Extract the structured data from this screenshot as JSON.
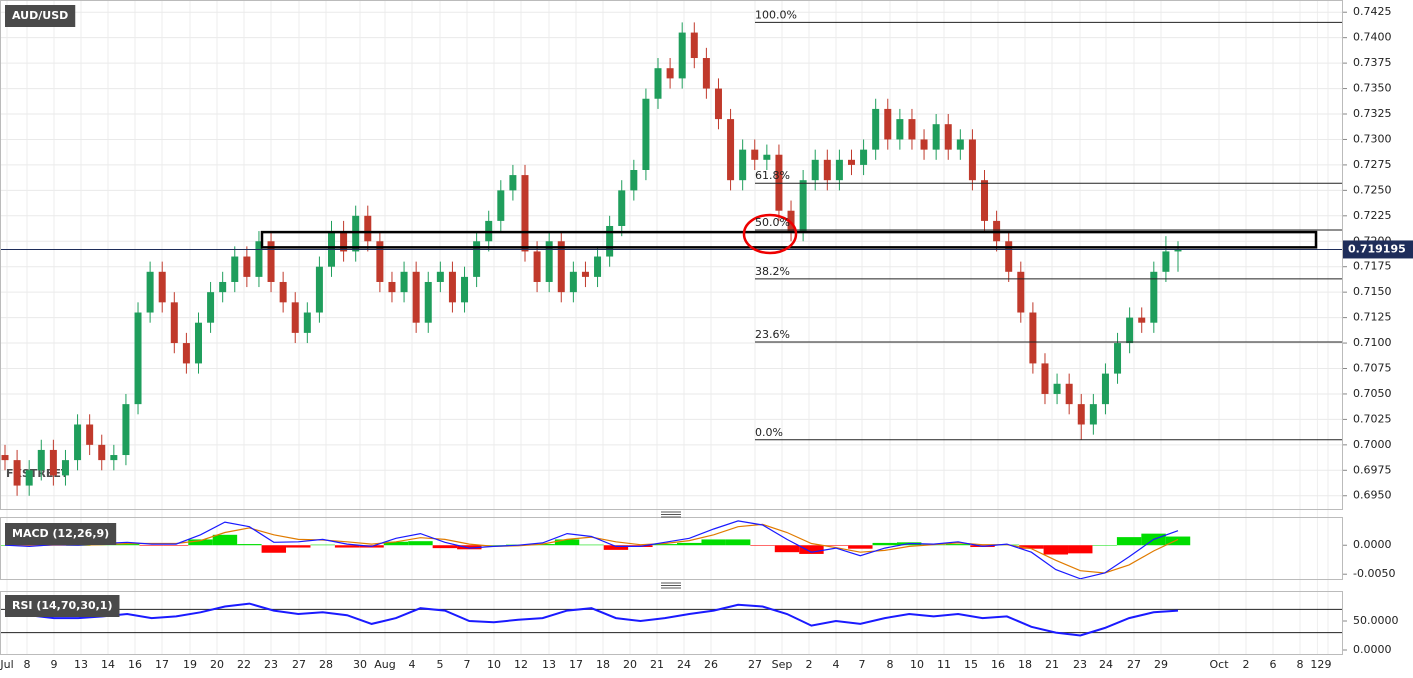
{
  "chart_data": [
    {
      "type": "candlestick",
      "title": "AUD/USD",
      "watermark": "FXSTREET",
      "up_color": "#1f9e5c",
      "down_color": "#c0392b",
      "grid": true,
      "ylim": [
        0.6936,
        0.7437
      ],
      "yticks": [
        {
          "value": 0.695,
          "label": "0.6950"
        },
        {
          "value": 0.6975,
          "label": "0.6975"
        },
        {
          "value": 0.7,
          "label": "0.7000"
        },
        {
          "value": 0.7025,
          "label": "0.7025"
        },
        {
          "value": 0.705,
          "label": "0.7050"
        },
        {
          "value": 0.7075,
          "label": "0.7075"
        },
        {
          "value": 0.71,
          "label": "0.7100"
        },
        {
          "value": 0.7125,
          "label": "0.7125"
        },
        {
          "value": 0.715,
          "label": "0.7150"
        },
        {
          "value": 0.7175,
          "label": "0.7175"
        },
        {
          "value": 0.72,
          "label": "0.7200"
        },
        {
          "value": 0.7225,
          "label": "0.7225"
        },
        {
          "value": 0.725,
          "label": "0.7250"
        },
        {
          "value": 0.7275,
          "label": "0.7275"
        },
        {
          "value": 0.73,
          "label": "0.7300"
        },
        {
          "value": 0.7325,
          "label": "0.7325"
        },
        {
          "value": 0.735,
          "label": "0.7350"
        },
        {
          "value": 0.7375,
          "label": "0.7375"
        },
        {
          "value": 0.74,
          "label": "0.7400"
        },
        {
          "value": 0.7425,
          "label": "0.7425"
        }
      ],
      "last_price": 0.719195,
      "last_price_color": "#1e2d5a",
      "zone": [
        0.7194,
        0.7209
      ],
      "fib_levels": [
        {
          "label": "100.0%",
          "value": 0.7415
        },
        {
          "label": "61.8%",
          "value": 0.7257
        },
        {
          "label": "50.0%",
          "value": 0.7211
        },
        {
          "label": "38.2%",
          "value": 0.7163
        },
        {
          "label": "23.6%",
          "value": 0.7101
        },
        {
          "label": "0.0%",
          "value": 0.7005
        }
      ],
      "x_labels": [
        "Jul",
        "8",
        "9",
        "13",
        "14",
        "16",
        "17",
        "19",
        "20",
        "22",
        "23",
        "27",
        "28",
        "30",
        "Aug",
        "4",
        "5",
        "7",
        "10",
        "12",
        "13",
        "17",
        "18",
        "20",
        "21",
        "24",
        "26",
        "27",
        "Sep",
        "2",
        "4",
        "7",
        "8",
        "10",
        "11",
        "15",
        "16",
        "18",
        "21",
        "23",
        "24",
        "27",
        "29",
        "Oct",
        "2",
        "6",
        "8",
        "9",
        "12"
      ],
      "ohlc": [
        [
          0.699,
          0.7,
          0.6975,
          0.6985
        ],
        [
          0.6985,
          0.6995,
          0.695,
          0.696
        ],
        [
          0.696,
          0.6985,
          0.695,
          0.6975
        ],
        [
          0.6975,
          0.7005,
          0.6965,
          0.6995
        ],
        [
          0.6995,
          0.7005,
          0.696,
          0.697
        ],
        [
          0.697,
          0.6995,
          0.696,
          0.6985
        ],
        [
          0.6985,
          0.703,
          0.6975,
          0.702
        ],
        [
          0.702,
          0.703,
          0.699,
          0.7
        ],
        [
          0.7,
          0.701,
          0.6975,
          0.6985
        ],
        [
          0.6985,
          0.7,
          0.6975,
          0.699
        ],
        [
          0.699,
          0.705,
          0.698,
          0.704
        ],
        [
          0.704,
          0.714,
          0.703,
          0.713
        ],
        [
          0.713,
          0.718,
          0.712,
          0.717
        ],
        [
          0.717,
          0.718,
          0.713,
          0.714
        ],
        [
          0.714,
          0.715,
          0.709,
          0.71
        ],
        [
          0.71,
          0.711,
          0.707,
          0.708
        ],
        [
          0.708,
          0.713,
          0.707,
          0.712
        ],
        [
          0.712,
          0.716,
          0.711,
          0.715
        ],
        [
          0.715,
          0.717,
          0.714,
          0.716
        ],
        [
          0.716,
          0.7195,
          0.715,
          0.7185
        ],
        [
          0.7185,
          0.7195,
          0.7155,
          0.7165
        ],
        [
          0.7165,
          0.721,
          0.7155,
          0.72
        ],
        [
          0.72,
          0.721,
          0.715,
          0.716
        ],
        [
          0.716,
          0.717,
          0.713,
          0.714
        ],
        [
          0.714,
          0.715,
          0.71,
          0.711
        ],
        [
          0.711,
          0.714,
          0.71,
          0.713
        ],
        [
          0.713,
          0.7185,
          0.712,
          0.7175
        ],
        [
          0.7175,
          0.722,
          0.7165,
          0.721
        ],
        [
          0.721,
          0.722,
          0.718,
          0.719
        ],
        [
          0.719,
          0.7235,
          0.718,
          0.7225
        ],
        [
          0.7225,
          0.7235,
          0.719,
          0.72
        ],
        [
          0.72,
          0.721,
          0.715,
          0.716
        ],
        [
          0.716,
          0.717,
          0.714,
          0.715
        ],
        [
          0.715,
          0.718,
          0.714,
          0.717
        ],
        [
          0.717,
          0.718,
          0.711,
          0.712
        ],
        [
          0.712,
          0.717,
          0.711,
          0.716
        ],
        [
          0.716,
          0.718,
          0.715,
          0.717
        ],
        [
          0.717,
          0.718,
          0.713,
          0.714
        ],
        [
          0.714,
          0.7175,
          0.713,
          0.7165
        ],
        [
          0.7165,
          0.721,
          0.7155,
          0.72
        ],
        [
          0.72,
          0.723,
          0.719,
          0.722
        ],
        [
          0.722,
          0.726,
          0.721,
          0.725
        ],
        [
          0.725,
          0.7275,
          0.724,
          0.7265
        ],
        [
          0.7265,
          0.7275,
          0.718,
          0.719
        ],
        [
          0.719,
          0.72,
          0.715,
          0.716
        ],
        [
          0.716,
          0.721,
          0.715,
          0.72
        ],
        [
          0.72,
          0.721,
          0.714,
          0.715
        ],
        [
          0.715,
          0.718,
          0.714,
          0.717
        ],
        [
          0.717,
          0.718,
          0.7155,
          0.7165
        ],
        [
          0.7165,
          0.7195,
          0.7155,
          0.7185
        ],
        [
          0.7185,
          0.7225,
          0.7175,
          0.7215
        ],
        [
          0.7215,
          0.726,
          0.7205,
          0.725
        ],
        [
          0.725,
          0.728,
          0.724,
          0.727
        ],
        [
          0.727,
          0.735,
          0.726,
          0.734
        ],
        [
          0.734,
          0.738,
          0.733,
          0.737
        ],
        [
          0.737,
          0.738,
          0.735,
          0.736
        ],
        [
          0.736,
          0.7415,
          0.735,
          0.7405
        ],
        [
          0.7405,
          0.7415,
          0.737,
          0.738
        ],
        [
          0.738,
          0.739,
          0.734,
          0.735
        ],
        [
          0.735,
          0.736,
          0.731,
          0.732
        ],
        [
          0.732,
          0.733,
          0.725,
          0.726
        ],
        [
          0.726,
          0.73,
          0.725,
          0.729
        ],
        [
          0.729,
          0.73,
          0.727,
          0.728
        ],
        [
          0.728,
          0.7295,
          0.727,
          0.7285
        ],
        [
          0.7285,
          0.7295,
          0.722,
          0.723
        ],
        [
          0.723,
          0.724,
          0.72,
          0.721
        ],
        [
          0.721,
          0.727,
          0.72,
          0.726
        ],
        [
          0.726,
          0.729,
          0.725,
          0.728
        ],
        [
          0.728,
          0.729,
          0.725,
          0.726
        ],
        [
          0.726,
          0.729,
          0.725,
          0.728
        ],
        [
          0.728,
          0.729,
          0.7265,
          0.7275
        ],
        [
          0.7275,
          0.73,
          0.7265,
          0.729
        ],
        [
          0.729,
          0.734,
          0.728,
          0.733
        ],
        [
          0.733,
          0.734,
          0.729,
          0.73
        ],
        [
          0.73,
          0.733,
          0.729,
          0.732
        ],
        [
          0.732,
          0.733,
          0.729,
          0.73
        ],
        [
          0.73,
          0.731,
          0.728,
          0.729
        ],
        [
          0.729,
          0.7325,
          0.728,
          0.7315
        ],
        [
          0.7315,
          0.7325,
          0.728,
          0.729
        ],
        [
          0.729,
          0.731,
          0.728,
          0.73
        ],
        [
          0.73,
          0.731,
          0.725,
          0.726
        ],
        [
          0.726,
          0.727,
          0.721,
          0.722
        ],
        [
          0.722,
          0.723,
          0.719,
          0.72
        ],
        [
          0.72,
          0.721,
          0.716,
          0.717
        ],
        [
          0.717,
          0.718,
          0.712,
          0.713
        ],
        [
          0.713,
          0.714,
          0.707,
          0.708
        ],
        [
          0.708,
          0.709,
          0.704,
          0.705
        ],
        [
          0.705,
          0.707,
          0.704,
          0.706
        ],
        [
          0.706,
          0.707,
          0.703,
          0.704
        ],
        [
          0.704,
          0.705,
          0.7005,
          0.702
        ],
        [
          0.702,
          0.705,
          0.701,
          0.704
        ],
        [
          0.704,
          0.708,
          0.703,
          0.707
        ],
        [
          0.707,
          0.711,
          0.706,
          0.71
        ],
        [
          0.71,
          0.7135,
          0.709,
          0.7125
        ],
        [
          0.7125,
          0.7135,
          0.711,
          0.712
        ],
        [
          0.712,
          0.718,
          0.711,
          0.717
        ],
        [
          0.717,
          0.7205,
          0.716,
          0.719
        ],
        [
          0.719,
          0.72,
          0.717,
          0.7192
        ]
      ]
    },
    {
      "type": "macd",
      "title": "MACD (12,26,9)",
      "macd_color": "#1a1aff",
      "signal_color": "#e07b00",
      "positive_color": "#00dd00",
      "negative_color": "#ff0000",
      "ylim": [
        -0.006,
        0.0047
      ],
      "yticks": [
        {
          "value": -0.005,
          "label": "-0.0050"
        },
        {
          "value": 0,
          "label": "0.0000"
        }
      ],
      "macd": [
        0.0,
        -0.0002,
        0.0001,
        0.0,
        0.0003,
        0.0005,
        0.0002,
        0.0002,
        0.0018,
        0.004,
        0.0032,
        0.0005,
        0.0006,
        0.001,
        0.0002,
        -0.0002,
        0.0012,
        0.002,
        0.0005,
        -0.0005,
        -0.0002,
        0.0,
        0.0004,
        0.002,
        0.0015,
        -0.0002,
        -0.0002,
        0.0005,
        0.0012,
        0.0028,
        0.0042,
        0.0035,
        0.001,
        -0.0012,
        -0.0005,
        -0.0018,
        -0.0005,
        0.0003,
        0.0002,
        0.0006,
        -0.0002,
        0.0002,
        -0.0012,
        -0.0042,
        -0.0058,
        -0.0048,
        -0.002,
        0.001,
        0.0025
      ],
      "signal": [
        0.0,
        -0.0001,
        0.0,
        0.0,
        0.0001,
        0.0003,
        0.0003,
        0.0003,
        0.0008,
        0.0022,
        0.003,
        0.0018,
        0.001,
        0.0009,
        0.0006,
        0.0002,
        0.0006,
        0.0013,
        0.001,
        0.0002,
        -0.0002,
        -0.0001,
        0.0002,
        0.001,
        0.0014,
        0.0006,
        0.0001,
        0.0003,
        0.0008,
        0.0018,
        0.0032,
        0.0036,
        0.0022,
        0.0003,
        -0.0004,
        -0.0012,
        -0.0009,
        -0.0002,
        0.0001,
        0.0004,
        0.0001,
        0.0001,
        -0.0006,
        -0.0026,
        -0.0044,
        -0.0048,
        -0.0034,
        -0.001,
        0.001
      ],
      "histogram": [
        0.0,
        -0.0001,
        0.0001,
        0.0,
        0.0002,
        0.0002,
        -0.0001,
        -0.0001,
        0.001,
        0.0018,
        0.0002,
        -0.0013,
        -0.0004,
        0.0001,
        -0.0004,
        -0.0004,
        0.0006,
        0.0007,
        -0.0005,
        -0.0007,
        0.0,
        0.0001,
        0.0002,
        0.001,
        0.0001,
        -0.0008,
        -0.0003,
        0.0002,
        0.0004,
        0.001,
        0.001,
        -0.0001,
        -0.0012,
        -0.0015,
        -0.0001,
        -0.0006,
        0.0004,
        0.0005,
        0.0001,
        0.0002,
        -0.0003,
        0.0001,
        -0.0006,
        -0.0016,
        -0.0014,
        0.0,
        0.0014,
        0.002,
        0.0015
      ]
    },
    {
      "type": "rsi",
      "title": "RSI (14,70,30,1)",
      "color": "#1a1aff",
      "levels": [
        70,
        30
      ],
      "ylim": [
        0,
        100
      ],
      "yticks": [
        {
          "value": 0,
          "label": "0.0000"
        },
        {
          "value": 50,
          "label": "50.0000"
        }
      ],
      "values": [
        65,
        60,
        55,
        55,
        58,
        62,
        55,
        58,
        65,
        75,
        80,
        68,
        62,
        65,
        60,
        45,
        55,
        72,
        68,
        50,
        48,
        52,
        55,
        68,
        72,
        55,
        50,
        55,
        62,
        68,
        78,
        75,
        62,
        42,
        50,
        45,
        55,
        62,
        58,
        62,
        55,
        58,
        40,
        30,
        25,
        38,
        55,
        65,
        68
      ]
    }
  ]
}
